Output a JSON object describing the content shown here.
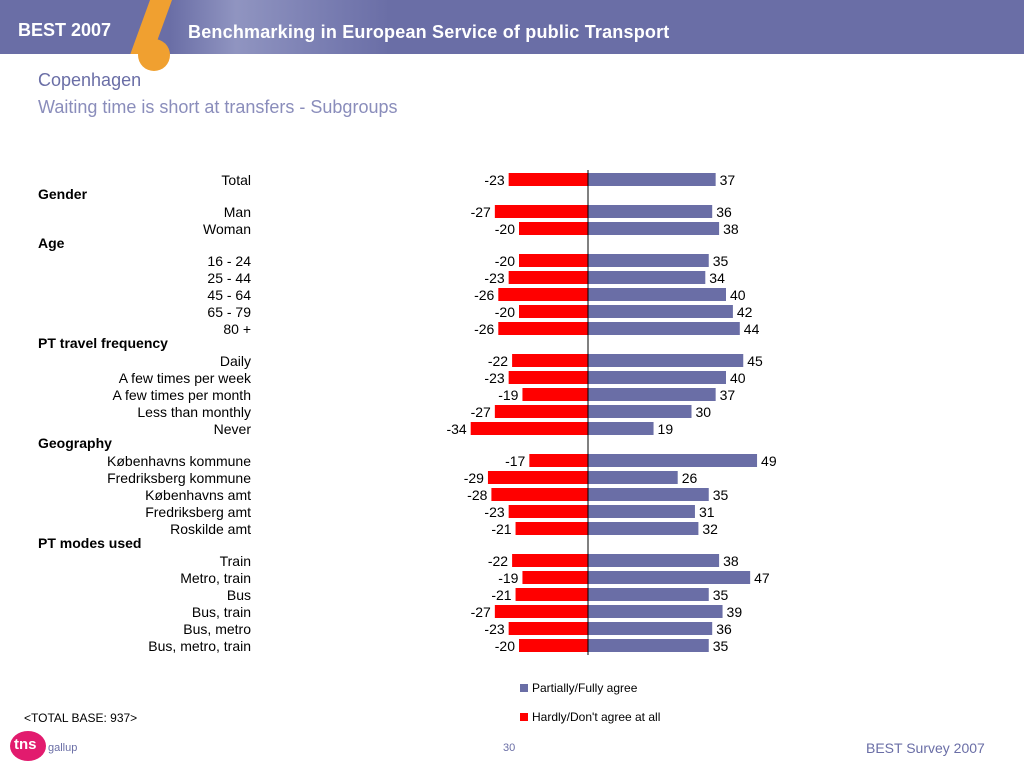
{
  "header": {
    "brand": "BEST 2007",
    "title": "Benchmarking in European Service of public Transport"
  },
  "heading": {
    "city": "Copenhagen",
    "subtitle": "Waiting time is short at transfers - Subgroups"
  },
  "colors": {
    "header_bg": "#6a6ea6",
    "accent_orange": "#f0a030",
    "positive": "#6a6ea6",
    "negative": "#ff0000",
    "logo_pink": "#e21b6e"
  },
  "chart_data": {
    "type": "bar",
    "orientation": "horizontal-diverging",
    "categories": [
      "Total",
      "Man",
      "Woman",
      "16 - 24",
      "25 - 44",
      "45 - 64",
      "65 - 79",
      "80 +",
      "Daily",
      "A few times per week",
      "A few times per month",
      "Less than monthly",
      "Never",
      "Københavns kommune",
      "Fredriksberg kommune",
      "Københavns amt",
      "Fredriksberg amt",
      "Roskilde amt",
      "Train",
      "Metro, train",
      "Bus",
      "Bus, train",
      "Bus, metro",
      "Bus, metro, train"
    ],
    "groups": [
      {
        "label": "Gender",
        "before_index": 1
      },
      {
        "label": "Age",
        "before_index": 3
      },
      {
        "label": "PT travel frequency",
        "before_index": 8
      },
      {
        "label": "Geography",
        "before_index": 13
      },
      {
        "label": "PT modes used",
        "before_index": 18
      }
    ],
    "series": [
      {
        "name": "Partially/Fully agree",
        "color": "#6a6ea6",
        "values": [
          37,
          36,
          38,
          35,
          34,
          40,
          42,
          44,
          45,
          40,
          37,
          30,
          19,
          49,
          26,
          35,
          31,
          32,
          38,
          47,
          35,
          39,
          36,
          35
        ]
      },
      {
        "name": "Hardly/Don't agree at all",
        "color": "#ff0000",
        "values": [
          -23,
          -27,
          -20,
          -20,
          -23,
          -26,
          -20,
          -26,
          -22,
          -23,
          -19,
          -27,
          -34,
          -17,
          -29,
          -28,
          -23,
          -21,
          -22,
          -19,
          -21,
          -27,
          -23,
          -20
        ]
      }
    ],
    "xlim": [
      -34,
      49
    ],
    "legend_position": "bottom"
  },
  "footer": {
    "base": "<TOTAL BASE: 937>",
    "page": "30",
    "right": "BEST Survey 2007",
    "logo_main": "tns",
    "logo_sub": "gallup"
  }
}
